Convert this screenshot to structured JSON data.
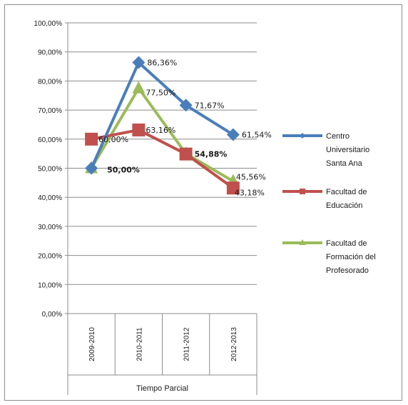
{
  "chart_data": {
    "type": "line",
    "title": "",
    "xlabel": "Tiempo Parcial",
    "ylabel": "",
    "categories": [
      "2009-2010",
      "2010-2011",
      "2011-2012",
      "2012-2013"
    ],
    "ylim": [
      0,
      100
    ],
    "yticks": [
      "0,00%",
      "10,00%",
      "20,00%",
      "30,00%",
      "40,00%",
      "50,00%",
      "60,00%",
      "70,00%",
      "80,00%",
      "90,00%",
      "100,00%"
    ],
    "grid": true,
    "legend_position": "right",
    "series": [
      {
        "name": "Centro Universitario Santa Ana",
        "legend_lines": [
          "Centro",
          "Universitario",
          "Santa Ana"
        ],
        "color": "#4a7ebb",
        "marker": "diamond",
        "values": [
          50.0,
          86.36,
          71.67,
          61.54
        ],
        "labels": [
          "",
          "86,36%",
          "71,67%",
          "61,54%"
        ]
      },
      {
        "name": "Facultad de Educación",
        "legend_lines": [
          "Facultad de",
          "Educación"
        ],
        "color": "#c0504d",
        "marker": "square",
        "values": [
          60.0,
          63.16,
          54.88,
          43.18
        ],
        "labels": [
          "60,00%",
          "63,16%",
          "54,88%",
          "43,18%"
        ]
      },
      {
        "name": "Facultad de Formación del Profesorado",
        "legend_lines": [
          "Facultad de",
          "Formación del",
          "Profesorado"
        ],
        "color": "#9bbb59",
        "marker": "triangle",
        "values": [
          50.0,
          77.5,
          55.0,
          45.56
        ],
        "labels": [
          "50,00%",
          "77,50%",
          "",
          "45,56%"
        ]
      }
    ]
  }
}
